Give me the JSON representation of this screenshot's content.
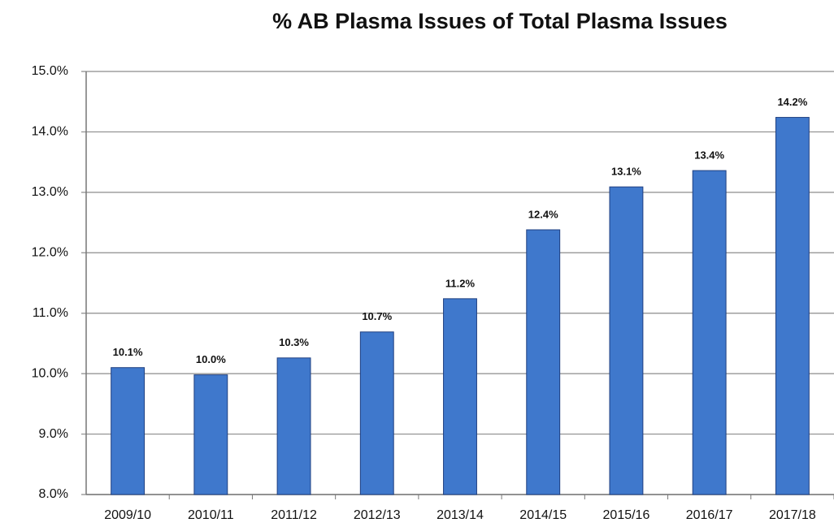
{
  "chart_data": {
    "type": "bar",
    "title": "% AB Plasma Issues of Total Plasma Issues",
    "categories": [
      "2009/10",
      "2010/11",
      "2011/12",
      "2012/13",
      "2013/14",
      "2014/15",
      "2015/16",
      "2016/17",
      "2017/18"
    ],
    "values": [
      10.1,
      9.98,
      10.26,
      10.69,
      11.24,
      12.38,
      13.09,
      13.36,
      14.24
    ],
    "value_labels": [
      "10.1%",
      "10.0%",
      "10.3%",
      "10.7%",
      "11.2%",
      "12.4%",
      "13.1%",
      "13.4%",
      "14.2%"
    ],
    "color": "#3f78cc",
    "ylim": [
      8,
      15
    ],
    "yticks": [
      {
        "value": 8,
        "label": "8.0%"
      },
      {
        "value": 9,
        "label": "9.0%"
      },
      {
        "value": 10,
        "label": "10.0%"
      },
      {
        "value": 11,
        "label": "11.0%"
      },
      {
        "value": 12,
        "label": "12.0%"
      },
      {
        "value": 13,
        "label": "13.0%"
      },
      {
        "value": 14,
        "label": "14.0%"
      },
      {
        "value": 15,
        "label": "15.0%"
      }
    ],
    "grid": true
  }
}
